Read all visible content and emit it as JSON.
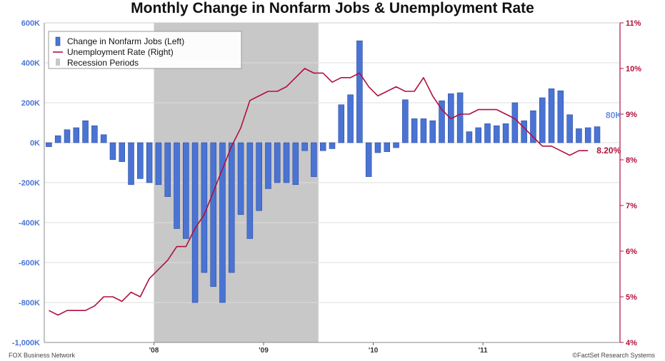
{
  "chart_data": {
    "type": "bar",
    "title": "Monthly Change in Nonfarm Jobs & Unemployment Rate",
    "x_tick_labels": [
      "'08",
      "'09",
      "'10",
      "'11"
    ],
    "y_left": {
      "ticks": [
        "-1,000K",
        "-800K",
        "-600K",
        "-400K",
        "-200K",
        "0K",
        "200K",
        "400K",
        "600K"
      ],
      "ylim": [
        -1000,
        600
      ],
      "unit": "K"
    },
    "y_right": {
      "ticks": [
        "4%",
        "5%",
        "6%",
        "7%",
        "8%",
        "9%",
        "10%",
        "11%"
      ],
      "ylim": [
        4,
        11
      ],
      "unit": "%"
    },
    "legend": {
      "placement": "top-left",
      "items": [
        "Change in Nonfarm Jobs (Left)",
        "Unemployment Rate (Right)",
        "Recession Periods"
      ]
    },
    "recession": {
      "start": "2007-12",
      "end": "2009-06"
    },
    "months": [
      "2007-01",
      "2007-02",
      "2007-03",
      "2007-04",
      "2007-05",
      "2007-06",
      "2007-07",
      "2007-08",
      "2007-09",
      "2007-10",
      "2007-11",
      "2007-12",
      "2008-01",
      "2008-02",
      "2008-03",
      "2008-04",
      "2008-05",
      "2008-06",
      "2008-07",
      "2008-08",
      "2008-09",
      "2008-10",
      "2008-11",
      "2008-12",
      "2009-01",
      "2009-02",
      "2009-03",
      "2009-04",
      "2009-05",
      "2009-06",
      "2009-07",
      "2009-08",
      "2009-09",
      "2009-10",
      "2009-11",
      "2009-12",
      "2010-01",
      "2010-02",
      "2010-03",
      "2010-04",
      "2010-05",
      "2010-06",
      "2010-07",
      "2010-08",
      "2010-09",
      "2010-10",
      "2010-11",
      "2010-12",
      "2011-01",
      "2011-02",
      "2011-03",
      "2011-04",
      "2011-05",
      "2011-06",
      "2011-07",
      "2011-08",
      "2011-09",
      "2011-10",
      "2011-11",
      "2011-12",
      "2012-01",
      "2012-02",
      "2012-03"
    ],
    "series": [
      {
        "name": "Change in Nonfarm Jobs (Left)",
        "color": "#4a74d4",
        "values": [
          -20,
          35,
          65,
          75,
          110,
          85,
          40,
          -85,
          -95,
          -210,
          -180,
          -200,
          -210,
          -270,
          -430,
          -480,
          -800,
          -650,
          -720,
          -800,
          -650,
          -360,
          -480,
          -340,
          -230,
          -200,
          -200,
          -210,
          -40,
          -170,
          -40,
          -30,
          190,
          240,
          510,
          -170,
          -50,
          -45,
          -25,
          215,
          120,
          120,
          110,
          210,
          245,
          250,
          55,
          75,
          95,
          85,
          95,
          200,
          110,
          160,
          225,
          270,
          260,
          140,
          70,
          75,
          80,
          null,
          null
        ],
        "end_label": "80K"
      },
      {
        "name": "Unemployment Rate (Right)",
        "color": "#b0103c",
        "values": [
          4.7,
          4.6,
          4.7,
          4.7,
          4.7,
          4.8,
          5.0,
          5.0,
          4.9,
          5.1,
          5.0,
          5.4,
          5.6,
          5.8,
          6.1,
          6.1,
          6.5,
          6.8,
          7.3,
          7.8,
          8.3,
          8.7,
          9.3,
          9.4,
          9.5,
          9.5,
          9.6,
          9.8,
          10.0,
          9.9,
          9.9,
          9.7,
          9.8,
          9.8,
          9.9,
          9.6,
          9.4,
          9.5,
          9.6,
          9.5,
          9.5,
          9.8,
          9.4,
          9.1,
          8.9,
          9.0,
          9.0,
          9.1,
          9.1,
          9.1,
          9.0,
          8.9,
          8.7,
          8.5,
          8.3,
          8.3,
          8.2,
          8.1,
          8.2,
          8.2,
          null,
          null,
          null
        ],
        "end_label": "8.20%"
      }
    ],
    "grid": true
  },
  "footer": {
    "source_left": "FOX Business Network",
    "source_right": "©FactSet Research Systems"
  },
  "colors": {
    "bar": "#4a74d4",
    "bar_stroke": "#2a4aa0",
    "line": "#b0103c",
    "recession": "#c8c8c8",
    "grid": "#dcdcdc",
    "left_axis_text": "#4a74d4",
    "right_axis_text": "#b0103c"
  }
}
